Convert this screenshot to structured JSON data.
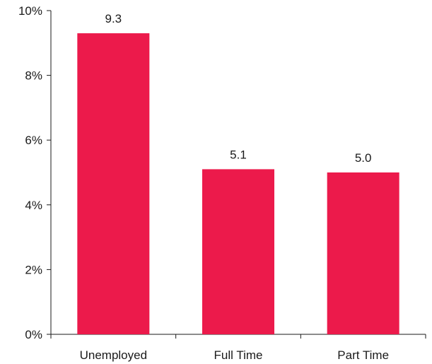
{
  "chart_data": {
    "type": "bar",
    "categories": [
      "Unemployed",
      "Full Time",
      "Part Time"
    ],
    "values": [
      9.3,
      5.1,
      5.0
    ],
    "data_labels": [
      "9.3",
      "5.1",
      "5.0"
    ],
    "title": "",
    "xlabel": "",
    "ylabel": "",
    "ylim": [
      0,
      10
    ],
    "yticks": [
      0,
      2,
      4,
      6,
      8,
      10
    ],
    "ytick_labels": [
      "0%",
      "2%",
      "4%",
      "6%",
      "8%",
      "10%"
    ],
    "grid": false,
    "bar_color": "#ec1a4b",
    "axis_color": "#1a1a1a"
  }
}
